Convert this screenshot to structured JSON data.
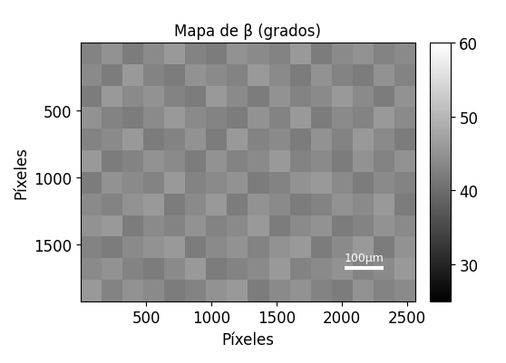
{
  "chart_data": {
    "type": "heatmap",
    "title": "Mapa de β (grados)",
    "xlabel": "Píxeles",
    "ylabel": "Píxeles",
    "xlim": [
      0,
      2560
    ],
    "ylim": [
      1920,
      0
    ],
    "xticks": [
      500,
      1000,
      1500,
      2000,
      2500
    ],
    "yticks": [
      500,
      1000,
      1500
    ],
    "annotation": "100μm",
    "colorbar": {
      "range": [
        25,
        60
      ],
      "ticks": [
        30,
        40,
        50,
        60
      ]
    },
    "cells": [
      [
        43,
        45,
        42,
        44,
        46,
        43,
        42,
        45,
        44,
        43,
        46,
        42,
        44,
        45,
        43,
        44
      ],
      [
        44,
        42,
        46,
        43,
        42,
        45,
        44,
        43,
        46,
        44,
        42,
        45,
        43,
        42,
        45,
        43
      ],
      [
        42,
        46,
        44,
        45,
        43,
        42,
        46,
        44,
        42,
        45,
        43,
        44,
        46,
        44,
        42,
        45
      ],
      [
        45,
        43,
        42,
        44,
        46,
        44,
        43,
        42,
        45,
        43,
        46,
        42,
        44,
        43,
        46,
        44
      ],
      [
        43,
        44,
        46,
        42,
        43,
        45,
        42,
        46,
        43,
        44,
        42,
        45,
        43,
        46,
        44,
        42
      ],
      [
        46,
        42,
        43,
        45,
        44,
        42,
        45,
        43,
        44,
        46,
        43,
        44,
        42,
        45,
        43,
        45
      ],
      [
        42,
        45,
        44,
        43,
        46,
        43,
        44,
        45,
        42,
        43,
        45,
        46,
        44,
        42,
        44,
        43
      ],
      [
        44,
        43,
        45,
        46,
        42,
        44,
        46,
        42,
        45,
        44,
        42,
        43,
        45,
        44,
        46,
        42
      ],
      [
        45,
        46,
        42,
        44,
        43,
        45,
        43,
        44,
        46,
        42,
        44,
        45,
        42,
        43,
        45,
        44
      ],
      [
        43,
        42,
        44,
        45,
        46,
        42,
        44,
        45,
        43,
        45,
        46,
        42,
        44,
        46,
        42,
        45
      ],
      [
        44,
        45,
        43,
        42,
        44,
        46,
        42,
        43,
        44,
        46,
        43,
        44,
        45,
        43,
        44,
        46
      ],
      [
        46,
        43,
        45,
        44,
        42,
        43,
        45,
        46,
        42,
        44,
        45,
        43,
        42,
        45,
        43,
        44
      ]
    ]
  }
}
